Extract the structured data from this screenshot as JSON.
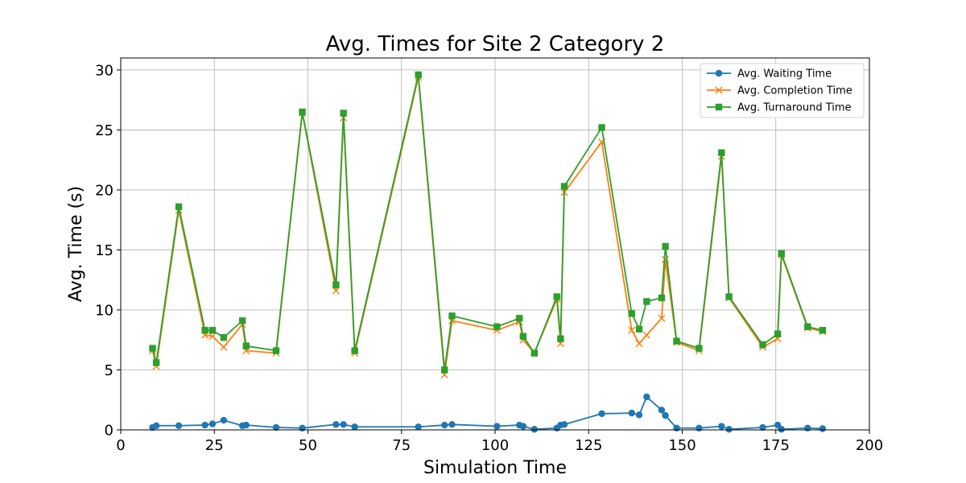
{
  "chart_data": {
    "type": "line",
    "title": "Avg. Times for Site 2 Category 2",
    "xlabel": "Simulation Time",
    "ylabel": "Avg. Time (s)",
    "xlim": [
      0,
      200
    ],
    "ylim": [
      0,
      31
    ],
    "xticks": [
      0,
      25,
      50,
      75,
      100,
      125,
      150,
      175,
      200
    ],
    "yticks": [
      0,
      5,
      10,
      15,
      20,
      25,
      30
    ],
    "grid": true,
    "legend_position": "top-right",
    "x": [
      8.5,
      9.5,
      15.5,
      22.5,
      24.5,
      27.5,
      32.5,
      33.5,
      41.5,
      48.5,
      57.5,
      59.5,
      62.5,
      79.5,
      86.5,
      88.5,
      100.5,
      106.5,
      107.5,
      110.5,
      116.5,
      117.5,
      118.5,
      128.5,
      136.5,
      138.5,
      140.5,
      144.5,
      145.5,
      148.5,
      154.5,
      160.5,
      162.5,
      171.5,
      175.5,
      176.5,
      183.5,
      187.5
    ],
    "series": [
      {
        "name": "Avg. Waiting Time",
        "color": "#1f77b4",
        "marker": "circle",
        "values": [
          0.2,
          0.35,
          0.35,
          0.4,
          0.5,
          0.8,
          0.35,
          0.4,
          0.2,
          0.15,
          0.45,
          0.45,
          0.25,
          0.25,
          0.4,
          0.45,
          0.3,
          0.4,
          0.3,
          0.05,
          0.15,
          0.4,
          0.45,
          1.35,
          1.4,
          1.25,
          2.75,
          1.65,
          1.2,
          0.15,
          0.15,
          0.3,
          0.05,
          0.2,
          0.4,
          0.05,
          0.15,
          0.1
        ]
      },
      {
        "name": "Avg. Completion Time",
        "color": "#ff7f0e",
        "marker": "x",
        "values": [
          6.6,
          5.3,
          18.3,
          7.9,
          7.8,
          6.9,
          8.8,
          6.6,
          6.4,
          26.4,
          11.6,
          26.0,
          6.4,
          29.4,
          4.6,
          9.1,
          8.3,
          9.0,
          7.5,
          6.4,
          10.9,
          7.2,
          19.8,
          24.0,
          8.3,
          7.2,
          7.9,
          9.3,
          14.2,
          7.3,
          6.6,
          22.8,
          11.0,
          6.9,
          7.6,
          14.6,
          8.5,
          8.2
        ]
      },
      {
        "name": "Avg. Turnaround Time",
        "color": "#2ca02c",
        "marker": "square",
        "values": [
          6.8,
          5.6,
          18.6,
          8.3,
          8.3,
          7.7,
          9.1,
          7.0,
          6.6,
          26.5,
          12.1,
          26.4,
          6.6,
          29.6,
          5.0,
          9.5,
          8.6,
          9.3,
          7.8,
          6.4,
          11.1,
          7.6,
          20.3,
          25.2,
          9.7,
          8.4,
          10.7,
          11.0,
          15.3,
          7.4,
          6.8,
          23.1,
          11.1,
          7.1,
          8.0,
          14.7,
          8.6,
          8.3
        ]
      }
    ]
  }
}
